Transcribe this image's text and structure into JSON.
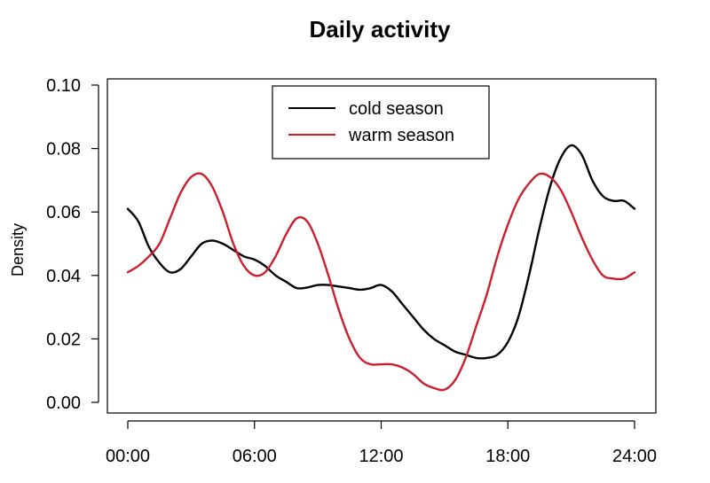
{
  "chart_data": {
    "type": "line",
    "title": "Daily activity",
    "xlabel": "",
    "ylabel": "Density",
    "xlim": [
      0,
      24
    ],
    "ylim": [
      0,
      0.1
    ],
    "x_ticks": [
      0,
      6,
      12,
      18,
      24
    ],
    "x_tick_labels": [
      "00:00",
      "06:00",
      "12:00",
      "18:00",
      "24:00"
    ],
    "y_ticks": [
      0,
      0.02,
      0.04,
      0.06,
      0.08,
      0.1
    ],
    "y_tick_labels": [
      "0.00",
      "0.02",
      "0.04",
      "0.06",
      "0.08",
      "0.10"
    ],
    "grid": false,
    "legend_position": "top-center",
    "series": [
      {
        "name": "cold season",
        "color": "#000000",
        "x": [
          0,
          0.5,
          1,
          1.5,
          2,
          2.5,
          3,
          3.5,
          4,
          4.5,
          5,
          5.5,
          6,
          6.5,
          7,
          7.5,
          8,
          8.5,
          9,
          9.5,
          10,
          10.5,
          11,
          11.5,
          12,
          12.5,
          13,
          13.5,
          14,
          14.5,
          15,
          15.5,
          16,
          16.5,
          17,
          17.5,
          18,
          18.5,
          19,
          19.5,
          20,
          20.5,
          21,
          21.5,
          22,
          22.5,
          23,
          23.5,
          24
        ],
        "y": [
          0.061,
          0.057,
          0.049,
          0.044,
          0.041,
          0.042,
          0.046,
          0.05,
          0.051,
          0.05,
          0.048,
          0.046,
          0.045,
          0.043,
          0.04,
          0.038,
          0.036,
          0.0362,
          0.037,
          0.037,
          0.0365,
          0.036,
          0.0355,
          0.036,
          0.037,
          0.035,
          0.031,
          0.027,
          0.023,
          0.02,
          0.018,
          0.016,
          0.015,
          0.014,
          0.014,
          0.015,
          0.019,
          0.027,
          0.04,
          0.055,
          0.068,
          0.077,
          0.081,
          0.078,
          0.07,
          0.065,
          0.0635,
          0.0635,
          0.061
        ]
      },
      {
        "name": "warm season",
        "color": "#cc1f2e",
        "x": [
          0,
          0.5,
          1,
          1.5,
          2,
          2.5,
          3,
          3.5,
          4,
          4.5,
          5,
          5.5,
          6,
          6.5,
          7,
          7.5,
          8,
          8.5,
          9,
          9.5,
          10,
          10.5,
          11,
          11.5,
          12,
          12.5,
          13,
          13.5,
          14,
          14.5,
          15,
          15.5,
          16,
          16.5,
          17,
          17.5,
          18,
          18.5,
          19,
          19.5,
          20,
          20.5,
          21,
          21.5,
          22,
          22.5,
          23,
          23.5,
          24
        ],
        "y": [
          0.041,
          0.043,
          0.046,
          0.05,
          0.058,
          0.066,
          0.071,
          0.072,
          0.068,
          0.06,
          0.05,
          0.043,
          0.04,
          0.041,
          0.046,
          0.053,
          0.058,
          0.057,
          0.05,
          0.04,
          0.029,
          0.02,
          0.014,
          0.012,
          0.012,
          0.012,
          0.011,
          0.009,
          0.006,
          0.0045,
          0.004,
          0.007,
          0.014,
          0.024,
          0.034,
          0.046,
          0.056,
          0.064,
          0.069,
          0.072,
          0.071,
          0.067,
          0.06,
          0.052,
          0.045,
          0.04,
          0.039,
          0.039,
          0.041
        ]
      }
    ]
  }
}
